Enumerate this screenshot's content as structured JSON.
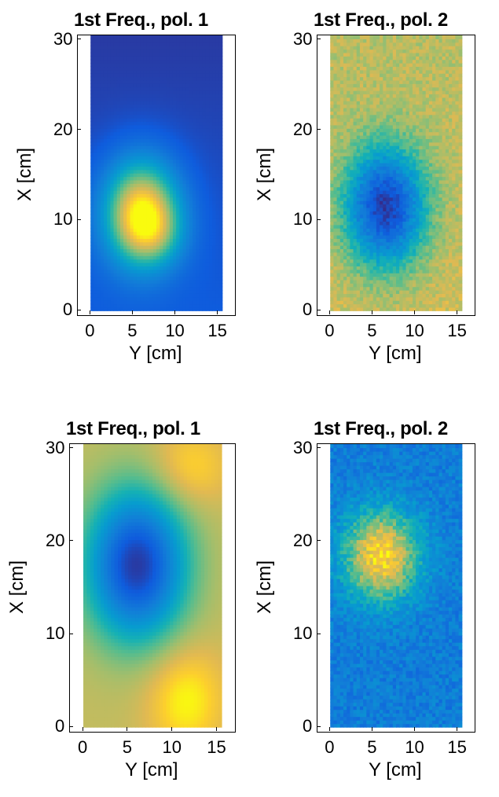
{
  "chart_data": [
    {
      "type": "heatmap",
      "title": "1st Freq., pol. 1",
      "xlabel": "Y [cm]",
      "ylabel": "X [cm]",
      "xlim": [
        -1.5,
        17
      ],
      "ylim": [
        -0.5,
        30.5
      ],
      "xticks": [
        0,
        5,
        10,
        15
      ],
      "yticks": [
        0,
        10,
        20,
        30
      ],
      "data_extent": {
        "x": [
          0,
          15.5
        ],
        "y": [
          0,
          30.5
        ]
      },
      "blobs": [
        {
          "x": 6,
          "y": 11,
          "sx": 3.2,
          "sy": 4.2,
          "amp": 0.85
        },
        {
          "x": 7.5,
          "y": 8.5,
          "sx": 2.5,
          "sy": 2.5,
          "amp": 0.2
        }
      ],
      "base": [
        0.15,
        0.05
      ],
      "noise": 0.0
    },
    {
      "type": "heatmap",
      "title": "1st Freq., pol. 2",
      "xlabel": "Y [cm]",
      "ylabel": "X [cm]",
      "xlim": [
        -1.5,
        17
      ],
      "ylim": [
        -0.5,
        30.5
      ],
      "xticks": [
        0,
        5,
        10,
        15
      ],
      "yticks": [
        0,
        10,
        20,
        30
      ],
      "data_extent": {
        "x": [
          0,
          15.5
        ],
        "y": [
          0,
          30.5
        ]
      },
      "blobs": [
        {
          "x": 6.5,
          "y": 11.5,
          "sx": 3.2,
          "sy": 4.5,
          "amp": -0.75
        }
      ],
      "base": [
        0.82,
        0.78
      ],
      "noise": 0.06
    },
    {
      "type": "heatmap",
      "title": "1st Freq., pol. 1",
      "xlabel": "Y [cm]",
      "ylabel": "X [cm]",
      "xlim": [
        -1.5,
        17
      ],
      "ylim": [
        -0.5,
        30.5
      ],
      "xticks": [
        0,
        5,
        10,
        15
      ],
      "yticks": [
        0,
        10,
        20,
        30
      ],
      "data_extent": {
        "x": [
          0,
          15.5
        ],
        "y": [
          0,
          30.5
        ]
      },
      "blobs": [
        {
          "x": 6,
          "y": 17.5,
          "sx": 3.8,
          "sy": 5.5,
          "amp": -0.75
        },
        {
          "x": 11.5,
          "y": 3,
          "sx": 3,
          "sy": 4,
          "amp": 0.2
        },
        {
          "x": 12,
          "y": 28,
          "sx": 3,
          "sy": 3,
          "amp": 0.15
        }
      ],
      "base": [
        0.8,
        0.8
      ],
      "noise": 0.0
    },
    {
      "type": "heatmap",
      "title": "1st Freq., pol. 2",
      "xlabel": "Y [cm]",
      "ylabel": "X [cm]",
      "xlim": [
        -1.5,
        17
      ],
      "ylim": [
        -0.5,
        30.5
      ],
      "xticks": [
        0,
        5,
        10,
        15
      ],
      "yticks": [
        0,
        10,
        20,
        30
      ],
      "data_extent": {
        "x": [
          0,
          15.5
        ],
        "y": [
          0,
          30.5
        ]
      },
      "blobs": [
        {
          "x": 6,
          "y": 18.5,
          "sx": 3.2,
          "sy": 3.5,
          "amp": 0.65
        }
      ],
      "base": [
        0.3,
        0.3
      ],
      "noise": 0.09
    }
  ]
}
